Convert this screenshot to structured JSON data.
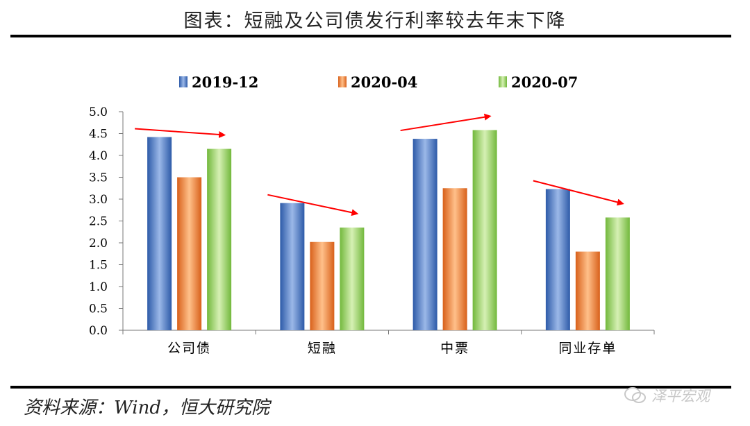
{
  "header": {
    "title": "图表：短融及公司债发行利率较去年末下降"
  },
  "footer": {
    "source": "资料来源：Wind，恒大研究院",
    "watermark": "泽平宏观"
  },
  "chart_data": {
    "type": "bar",
    "title": "图表：短融及公司债发行利率较去年末下降",
    "categories": [
      "公司债",
      "短融",
      "中票",
      "同业存单"
    ],
    "series": [
      {
        "name": "2019-12",
        "values": [
          4.42,
          2.91,
          4.38,
          3.23
        ],
        "color": "#3f6fc0"
      },
      {
        "name": "2020-04",
        "values": [
          3.5,
          2.02,
          3.25,
          1.8
        ],
        "color": "#e87a2e"
      },
      {
        "name": "2020-07",
        "values": [
          4.15,
          2.35,
          4.58,
          2.58
        ],
        "color": "#8fca5a"
      }
    ],
    "ylim": [
      0,
      5
    ],
    "yticks": [
      "0.0",
      "0.5",
      "1.0",
      "1.5",
      "2.0",
      "2.5",
      "3.0",
      "3.5",
      "4.0",
      "4.5",
      "5.0"
    ],
    "xlabel": "",
    "ylabel": "",
    "legend": "top-center",
    "annotations": "red trend arrows above each category group"
  }
}
